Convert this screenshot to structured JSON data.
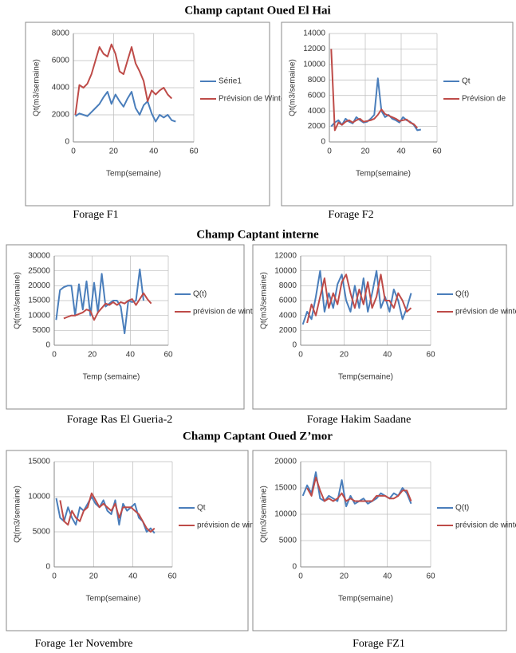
{
  "sections": [
    "Champ captant Oued El Hai",
    "Champ Captant interne",
    "Champ Captant Oued Z’mor"
  ],
  "chart_data": [
    {
      "type": "line",
      "caption": "Forage  F1",
      "ylabel": "Qt(m3/semaine)",
      "xlabel": "Temp(semaine)",
      "x": [
        1,
        3,
        5,
        7,
        9,
        11,
        13,
        15,
        17,
        19,
        21,
        23,
        25,
        27,
        29,
        31,
        33,
        35,
        37,
        39,
        41,
        43,
        45,
        47,
        49,
        51
      ],
      "xlim": [
        0,
        60
      ],
      "xticks": [
        0,
        20,
        40,
        60
      ],
      "ylim": [
        0,
        8000
      ],
      "yticks": [
        0,
        2000,
        4000,
        6000,
        8000
      ],
      "grid": true,
      "legend": "right",
      "series": [
        {
          "name": "Série1",
          "color": "#4a7ebb",
          "values": [
            1900,
            2100,
            2000,
            1900,
            2200,
            2500,
            2800,
            3300,
            3700,
            2800,
            3500,
            3000,
            2600,
            3200,
            3700,
            2500,
            2000,
            2700,
            3000,
            2100,
            1500,
            2000,
            1800,
            2000,
            1600,
            1500
          ]
        },
        {
          "name": "Prévision de Winters",
          "color": "#be4b48",
          "values": [
            2000,
            4200,
            4000,
            4300,
            5000,
            6000,
            7000,
            6500,
            6300,
            7200,
            6500,
            5200,
            5000,
            6000,
            7000,
            5800,
            5200,
            4500,
            3000,
            3800,
            3500,
            3800,
            4000,
            3500,
            3200,
            null
          ]
        }
      ]
    },
    {
      "type": "line",
      "caption": "Forage F2",
      "ylabel": "Qt(m3/semaine)",
      "xlabel": "Temp(semaine)",
      "x": [
        1,
        3,
        5,
        7,
        9,
        11,
        13,
        15,
        17,
        19,
        21,
        23,
        25,
        27,
        29,
        31,
        33,
        35,
        37,
        39,
        41,
        43,
        45,
        47,
        49,
        51
      ],
      "xlim": [
        0,
        60
      ],
      "xticks": [
        0,
        20,
        40,
        60
      ],
      "ylim": [
        0,
        14000
      ],
      "yticks": [
        0,
        2000,
        4000,
        6000,
        8000,
        10000,
        12000,
        14000
      ],
      "grid": true,
      "legend": "right",
      "series": [
        {
          "name": "Qt",
          "color": "#4a7ebb",
          "values": [
            2000,
            2500,
            2800,
            2200,
            3000,
            2600,
            2400,
            3200,
            2800,
            2500,
            2600,
            3000,
            3500,
            8200,
            4000,
            3200,
            3500,
            3000,
            2800,
            2500,
            3200,
            2800,
            2600,
            2200,
            1500,
            1600
          ]
        },
        {
          "name": "Prévision de",
          "color": "#be4b48",
          "values": [
            12000,
            1500,
            2500,
            2200,
            2600,
            2800,
            2500,
            2800,
            3000,
            2600,
            2700,
            2800,
            3000,
            3500,
            4200,
            3600,
            3400,
            3200,
            3000,
            2700,
            2800,
            2900,
            2500,
            2300,
            1800,
            null
          ]
        }
      ]
    },
    {
      "type": "line",
      "caption": "Forage Ras El Gueria-2",
      "ylabel": "Qt(m3/semaine)",
      "xlabel": "Temp (semaine)",
      "x": [
        1,
        3,
        5,
        7,
        9,
        11,
        13,
        15,
        17,
        19,
        21,
        23,
        25,
        27,
        29,
        31,
        33,
        35,
        37,
        39,
        41,
        43,
        45,
        47,
        49,
        51
      ],
      "xlim": [
        0,
        60
      ],
      "xticks": [
        0,
        20,
        40,
        60
      ],
      "ylim": [
        0,
        30000
      ],
      "yticks": [
        0,
        5000,
        10000,
        15000,
        20000,
        25000,
        30000
      ],
      "grid": true,
      "legend": "right",
      "series": [
        {
          "name": "Q(t)",
          "color": "#4a7ebb",
          "values": [
            8500,
            18500,
            19500,
            20000,
            20000,
            10000,
            20500,
            12000,
            21500,
            10000,
            21000,
            11000,
            24000,
            13000,
            14000,
            15000,
            15000,
            13000,
            4000,
            15000,
            14500,
            15000,
            25500,
            15000,
            null,
            null
          ]
        },
        {
          "name": "prévision de winters",
          "color": "#be4b48",
          "values": [
            null,
            null,
            9000,
            9500,
            10000,
            10000,
            10500,
            11000,
            12000,
            11500,
            8500,
            11000,
            12500,
            14000,
            13500,
            14500,
            13500,
            14500,
            14000,
            15000,
            15500,
            13500,
            15500,
            17500,
            15500,
            14000
          ]
        }
      ]
    },
    {
      "type": "line",
      "caption": "Forage Hakim Saadane",
      "ylabel": "Qt(m3/semaine)",
      "xlabel": "Temp(semaine)",
      "x": [
        1,
        3,
        5,
        7,
        9,
        11,
        13,
        15,
        17,
        19,
        21,
        23,
        25,
        27,
        29,
        31,
        33,
        35,
        37,
        39,
        41,
        43,
        45,
        47,
        49,
        51
      ],
      "xlim": [
        0,
        60
      ],
      "xticks": [
        0,
        20,
        40,
        60
      ],
      "ylim": [
        0,
        12000
      ],
      "yticks": [
        0,
        2000,
        4000,
        6000,
        8000,
        10000,
        12000
      ],
      "grid": true,
      "legend": "right",
      "series": [
        {
          "name": "Q(t)",
          "color": "#4a7ebb",
          "values": [
            2800,
            4500,
            3500,
            6500,
            10000,
            4500,
            7000,
            5000,
            8200,
            9500,
            6000,
            4500,
            8000,
            5000,
            9000,
            4500,
            7000,
            10000,
            5000,
            6500,
            4500,
            7500,
            6000,
            3500,
            5000,
            7000
          ]
        },
        {
          "name": "prévision de winters",
          "color": "#be4b48",
          "values": [
            null,
            3000,
            5500,
            4000,
            6500,
            9000,
            5000,
            7000,
            5500,
            8500,
            9500,
            7000,
            5000,
            7500,
            5500,
            8500,
            5000,
            6500,
            9500,
            6000,
            6000,
            5000,
            7000,
            6000,
            4500,
            5000
          ]
        }
      ]
    },
    {
      "type": "line",
      "caption": "Forage 1er Novembre",
      "ylabel": "Qt(m3/semaine)",
      "xlabel": "Temp(semaine)",
      "x": [
        1,
        3,
        5,
        7,
        9,
        11,
        13,
        15,
        17,
        19,
        21,
        23,
        25,
        27,
        29,
        31,
        33,
        35,
        37,
        39,
        41,
        43,
        45,
        47,
        49,
        51
      ],
      "xlim": [
        0,
        60
      ],
      "xticks": [
        0,
        20,
        40,
        60
      ],
      "ylim": [
        0,
        15000
      ],
      "yticks": [
        0,
        5000,
        10000,
        15000
      ],
      "grid": true,
      "legend": "right",
      "series": [
        {
          "name": "Qt",
          "color": "#4a7ebb",
          "values": [
            9800,
            7000,
            6500,
            8500,
            7000,
            6000,
            8500,
            8000,
            9000,
            10000,
            9000,
            8500,
            9500,
            8000,
            7500,
            9500,
            6000,
            9000,
            8000,
            8500,
            9000,
            7000,
            6500,
            5000,
            5500,
            4800
          ]
        },
        {
          "name": "prévision de winters",
          "color": "#be4b48",
          "values": [
            null,
            9500,
            6500,
            6000,
            8000,
            7000,
            6500,
            8000,
            8500,
            10500,
            9500,
            8500,
            9000,
            8500,
            8000,
            9000,
            7000,
            8500,
            8500,
            8500,
            8000,
            7500,
            6500,
            5500,
            5000,
            5500
          ]
        }
      ]
    },
    {
      "type": "line",
      "caption": "Forage FZ1",
      "ylabel": "Qt(m3/semaine)",
      "xlabel": "Temp(semaine)",
      "x": [
        1,
        3,
        5,
        7,
        9,
        11,
        13,
        15,
        17,
        19,
        21,
        23,
        25,
        27,
        29,
        31,
        33,
        35,
        37,
        39,
        41,
        43,
        45,
        47,
        49,
        51
      ],
      "xlim": [
        0,
        60
      ],
      "xticks": [
        0,
        20,
        40,
        60
      ],
      "ylim": [
        0,
        20000
      ],
      "yticks": [
        0,
        5000,
        10000,
        15000,
        20000
      ],
      "grid": true,
      "legend": "right",
      "series": [
        {
          "name": "Q(t)",
          "color": "#4a7ebb",
          "values": [
            13500,
            15500,
            14000,
            18000,
            13000,
            12500,
            13500,
            13000,
            12500,
            16500,
            11500,
            13500,
            12000,
            12500,
            13000,
            12000,
            12500,
            13000,
            14000,
            13500,
            13000,
            14000,
            13500,
            15000,
            14000,
            12000
          ]
        },
        {
          "name": "prévision de winters",
          "color": "#be4b48",
          "values": [
            null,
            15000,
            13500,
            17000,
            14500,
            12500,
            13000,
            12500,
            13000,
            14000,
            12500,
            13000,
            12500,
            12500,
            12500,
            12500,
            12500,
            13500,
            13500,
            13500,
            13000,
            13000,
            13500,
            14500,
            14500,
            12500
          ]
        }
      ]
    }
  ]
}
